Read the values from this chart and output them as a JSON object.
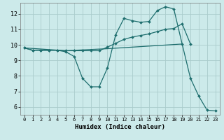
{
  "xlabel": "Humidex (Indice chaleur)",
  "bg_color": "#cceaea",
  "grid_color": "#aacccc",
  "line_color": "#1e6e6e",
  "xlim": [
    -0.5,
    23.5
  ],
  "ylim": [
    5.5,
    12.7
  ],
  "xticks": [
    0,
    1,
    2,
    3,
    4,
    5,
    6,
    7,
    8,
    9,
    10,
    11,
    12,
    13,
    14,
    15,
    16,
    17,
    18,
    19,
    20,
    21,
    22,
    23
  ],
  "yticks": [
    6,
    7,
    8,
    9,
    10,
    11,
    12
  ],
  "line1_x": [
    0,
    1,
    2,
    3,
    4,
    5,
    6,
    7,
    8,
    9,
    10,
    11,
    12,
    13,
    14,
    15,
    16,
    17,
    18,
    19,
    20,
    21,
    22,
    23
  ],
  "line1_y": [
    9.8,
    9.65,
    9.65,
    9.65,
    9.65,
    9.55,
    9.25,
    7.85,
    7.3,
    7.3,
    8.5,
    10.65,
    11.7,
    11.55,
    11.45,
    11.5,
    12.2,
    12.45,
    12.3,
    10.05,
    7.85,
    6.7,
    5.8,
    5.75
  ],
  "line2_x": [
    0,
    1,
    2,
    3,
    4,
    5,
    6,
    7,
    8,
    9,
    10,
    11,
    12,
    13,
    14,
    15,
    16,
    17,
    18,
    19,
    20
  ],
  "line2_y": [
    9.8,
    9.65,
    9.65,
    9.65,
    9.65,
    9.62,
    9.62,
    9.62,
    9.62,
    9.62,
    9.85,
    10.1,
    10.35,
    10.5,
    10.6,
    10.7,
    10.85,
    11.0,
    11.05,
    11.35,
    10.05
  ],
  "line3_x": [
    0,
    5,
    10,
    19
  ],
  "line3_y": [
    9.8,
    9.62,
    9.75,
    10.05
  ]
}
